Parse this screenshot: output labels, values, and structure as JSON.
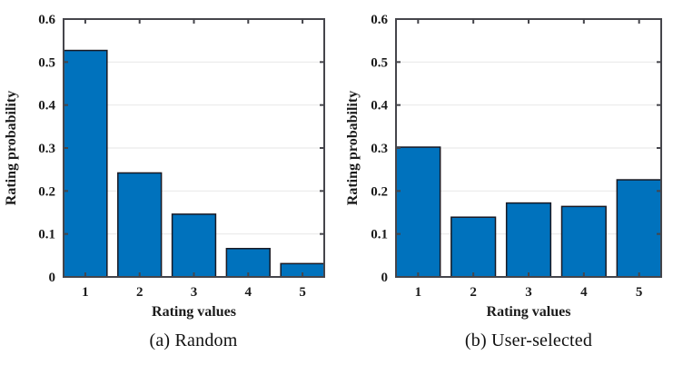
{
  "chart_data": [
    {
      "type": "bar",
      "title": "(a) Random",
      "categories": [
        "1",
        "2",
        "3",
        "4",
        "5"
      ],
      "values": [
        0.527,
        0.242,
        0.146,
        0.066,
        0.031
      ],
      "xlabel": "Rating values",
      "ylabel": "Rating probability",
      "xlim": [
        0.6,
        5.4
      ],
      "ylim": [
        0,
        0.6
      ],
      "yticks": [
        "0",
        "0.1",
        "0.2",
        "0.3",
        "0.4",
        "0.5",
        "0.6"
      ],
      "bar_width": 0.8,
      "grid": "horizontal",
      "legend": "none"
    },
    {
      "type": "bar",
      "title": "(b) User-selected",
      "categories": [
        "1",
        "2",
        "3",
        "4",
        "5"
      ],
      "values": [
        0.302,
        0.139,
        0.172,
        0.164,
        0.226
      ],
      "xlabel": "Rating values",
      "ylabel": "Rating probability",
      "xlim": [
        0.6,
        5.4
      ],
      "ylim": [
        0,
        0.6
      ],
      "yticks": [
        "0",
        "0.1",
        "0.2",
        "0.3",
        "0.4",
        "0.5",
        "0.6"
      ],
      "bar_width": 0.8,
      "grid": "horizontal",
      "legend": "none"
    }
  ],
  "colors": {
    "bar_fill": "#0072BD",
    "bar_edge": "#191923",
    "axis": "#45454b",
    "grid": "#e9e9e9",
    "text": "#1b1b1b",
    "background": "#ffffff"
  }
}
